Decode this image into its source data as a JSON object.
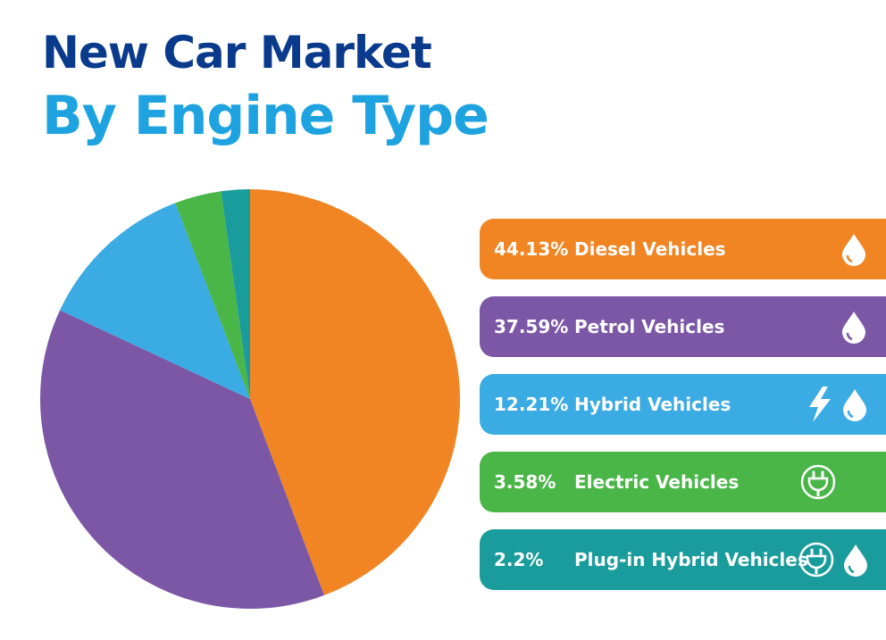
{
  "title": {
    "line1": "New Car Market",
    "line2": "By Engine Type"
  },
  "chart_data": {
    "type": "pie",
    "title": "New Car Market By Engine Type",
    "categories": [
      "Diesel Vehicles",
      "Petrol Vehicles",
      "Hybrid Vehicles",
      "Electric Vehicles",
      "Plug-in Hybrid Vehicles"
    ],
    "values": [
      44.13,
      37.59,
      12.21,
      3.58,
      2.2
    ],
    "value_labels": [
      "44.13%",
      "37.59%",
      "12.21%",
      "3.58%",
      "2.2%"
    ],
    "colors": [
      "#f18523",
      "#7b57a6",
      "#3aabe3",
      "#4ab648",
      "#1a9c9c"
    ],
    "legend_placement": "right",
    "grid": false
  },
  "legend": [
    {
      "pct": "44.13%",
      "label": "Diesel Vehicles",
      "color": "#f18523",
      "icons": [
        "drop-icon"
      ]
    },
    {
      "pct": "37.59%",
      "label": "Petrol Vehicles",
      "color": "#7b57a6",
      "icons": [
        "drop-icon"
      ]
    },
    {
      "pct": "12.21%",
      "label": "Hybrid Vehicles",
      "color": "#3aabe3",
      "icons": [
        "lightning-icon",
        "drop-icon"
      ]
    },
    {
      "pct": "3.58%",
      "label": "Electric Vehicles",
      "color": "#4ab648",
      "icons": [
        "plug-icon"
      ]
    },
    {
      "pct": "2.2%",
      "label": "Plug-in Hybrid Vehicles",
      "color": "#1a9c9c",
      "icons": [
        "plug-icon",
        "drop-icon"
      ]
    }
  ]
}
